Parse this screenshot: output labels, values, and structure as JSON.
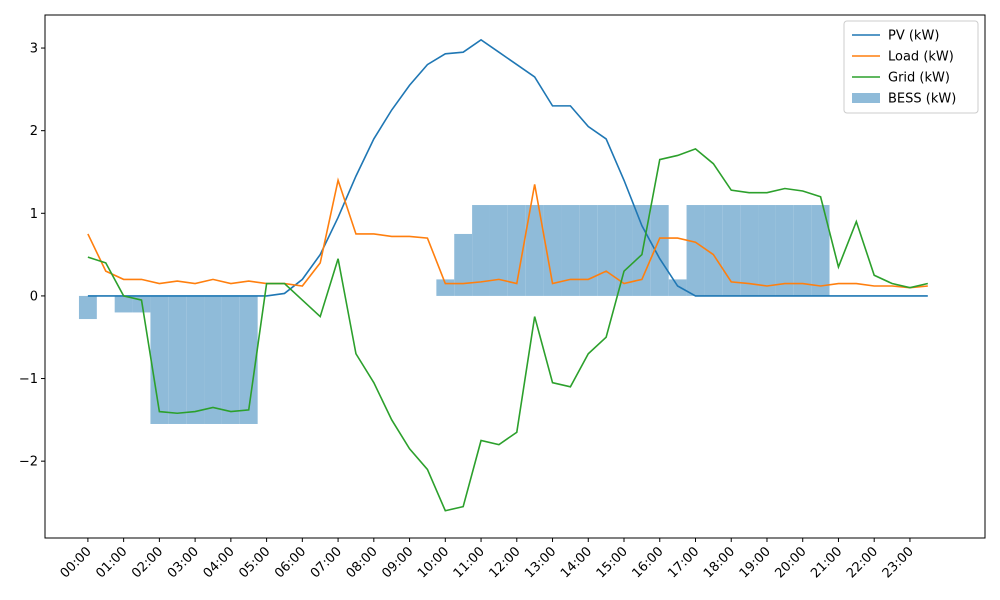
{
  "chart_data": {
    "type": "line",
    "x": [
      0,
      0.5,
      1,
      1.5,
      2,
      2.5,
      3,
      3.5,
      4,
      4.5,
      5,
      5.5,
      6,
      6.5,
      7,
      7.5,
      8,
      8.5,
      9,
      9.5,
      10,
      10.5,
      11,
      11.5,
      12,
      12.5,
      13,
      13.5,
      14,
      14.5,
      15,
      15.5,
      16,
      16.5,
      17,
      17.5,
      18,
      18.5,
      19,
      19.5,
      20,
      20.5,
      21,
      21.5,
      22,
      22.5,
      23,
      23.5
    ],
    "series": [
      {
        "name": "PV (kW)",
        "type": "line",
        "color": "#1f77b4",
        "values": [
          0,
          0,
          0,
          0,
          0,
          0,
          0,
          0,
          0,
          0,
          0,
          0.03,
          0.2,
          0.5,
          0.95,
          1.45,
          1.9,
          2.25,
          2.55,
          2.8,
          2.93,
          2.95,
          3.1,
          2.95,
          2.8,
          2.65,
          2.3,
          2.3,
          2.05,
          1.9,
          1.4,
          0.85,
          0.45,
          0.12,
          0,
          0,
          0,
          0,
          0,
          0,
          0,
          0,
          0,
          0,
          0,
          0,
          0,
          0
        ]
      },
      {
        "name": "Load (kW)",
        "type": "line",
        "color": "#ff7f0e",
        "values": [
          0.75,
          0.3,
          0.2,
          0.2,
          0.15,
          0.18,
          0.15,
          0.2,
          0.15,
          0.18,
          0.15,
          0.15,
          0.12,
          0.4,
          1.4,
          0.75,
          0.75,
          0.72,
          0.72,
          0.7,
          0.15,
          0.15,
          0.17,
          0.2,
          0.15,
          1.35,
          0.15,
          0.2,
          0.2,
          0.3,
          0.15,
          0.2,
          0.7,
          0.7,
          0.65,
          0.5,
          0.17,
          0.15,
          0.12,
          0.15,
          0.15,
          0.12,
          0.15,
          0.15,
          0.12,
          0.12,
          0.1,
          0.12
        ]
      },
      {
        "name": "Grid (kW)",
        "type": "line",
        "color": "#2ca02c",
        "values": [
          0.47,
          0.4,
          0,
          -0.05,
          -1.4,
          -1.42,
          -1.4,
          -1.35,
          -1.4,
          -1.38,
          0.15,
          0.15,
          -0.05,
          -0.25,
          0.45,
          -0.7,
          -1.05,
          -1.5,
          -1.85,
          -2.1,
          -2.6,
          -2.55,
          -1.75,
          -1.8,
          -1.65,
          -0.25,
          -1.05,
          -1.1,
          -0.7,
          -0.5,
          0.3,
          0.5,
          1.65,
          1.7,
          1.78,
          1.6,
          1.28,
          1.25,
          1.25,
          1.3,
          1.27,
          1.2,
          0.35,
          0.9,
          0.25,
          0.15,
          0.1,
          0.15
        ]
      },
      {
        "name": "BESS (kW)",
        "type": "bar",
        "color": "#8fbbd9",
        "values": [
          -0.28,
          0,
          -0.2,
          -0.2,
          -1.55,
          -1.55,
          -1.55,
          -1.55,
          -1.55,
          -1.55,
          0,
          0,
          0,
          0,
          0,
          0,
          0,
          0,
          0,
          0,
          0.2,
          0.75,
          1.1,
          1.1,
          1.1,
          1.1,
          1.1,
          1.1,
          1.1,
          1.1,
          1.1,
          1.1,
          1.1,
          0.2,
          1.1,
          1.1,
          1.1,
          1.1,
          1.1,
          1.1,
          1.1,
          1.1,
          0,
          0,
          0,
          0,
          0,
          0
        ]
      }
    ],
    "xlim": [
      -1.2,
      25.1
    ],
    "ylim": [
      -2.93,
      3.4
    ],
    "xticks": [
      {
        "value": 0,
        "label": "00:00"
      },
      {
        "value": 1,
        "label": "01:00"
      },
      {
        "value": 2,
        "label": "02:00"
      },
      {
        "value": 3,
        "label": "03:00"
      },
      {
        "value": 4,
        "label": "04:00"
      },
      {
        "value": 5,
        "label": "05:00"
      },
      {
        "value": 6,
        "label": "06:00"
      },
      {
        "value": 7,
        "label": "07:00"
      },
      {
        "value": 8,
        "label": "08:00"
      },
      {
        "value": 9,
        "label": "09:00"
      },
      {
        "value": 10,
        "label": "10:00"
      },
      {
        "value": 11,
        "label": "11:00"
      },
      {
        "value": 12,
        "label": "12:00"
      },
      {
        "value": 13,
        "label": "13:00"
      },
      {
        "value": 14,
        "label": "14:00"
      },
      {
        "value": 15,
        "label": "15:00"
      },
      {
        "value": 16,
        "label": "16:00"
      },
      {
        "value": 17,
        "label": "17:00"
      },
      {
        "value": 18,
        "label": "18:00"
      },
      {
        "value": 19,
        "label": "19:00"
      },
      {
        "value": 20,
        "label": "20:00"
      },
      {
        "value": 21,
        "label": "21:00"
      },
      {
        "value": 22,
        "label": "22:00"
      },
      {
        "value": 23,
        "label": "23:00"
      }
    ],
    "yticks": [
      {
        "value": -2,
        "label": "−2"
      },
      {
        "value": -1,
        "label": "−1"
      },
      0,
      1,
      2,
      3
    ],
    "legend": "upper right"
  }
}
